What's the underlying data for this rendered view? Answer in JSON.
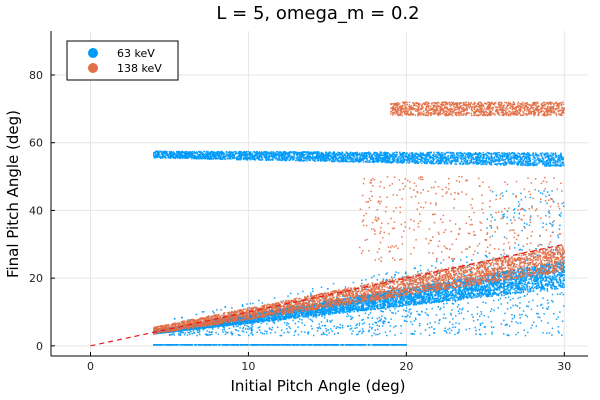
{
  "chart_data": {
    "type": "scatter",
    "title": "L = 5, omega_m = 0.2",
    "xlabel": "Initial Pitch Angle (deg)",
    "ylabel": "Final Pitch Angle (deg)",
    "xlim": [
      -2.5,
      31.5
    ],
    "ylim": [
      -3,
      93
    ],
    "xticks": [
      0,
      10,
      20,
      30
    ],
    "yticks": [
      0,
      20,
      40,
      60,
      80
    ],
    "grid": true,
    "legend_position": "top-left",
    "reference_line": {
      "style": "dashed",
      "color": "#e41a1c",
      "points": [
        [
          0,
          0
        ],
        [
          30,
          30
        ]
      ]
    },
    "series": [
      {
        "name": "63 keV",
        "color": "#009af9",
        "clusters": [
          {
            "kind": "band",
            "x": [
              4,
              30
            ],
            "y_start": [
              55.5,
              57.5
            ],
            "y_end": [
              53,
              57
            ],
            "density": "high",
            "count": 3200
          },
          {
            "kind": "band",
            "x": [
              4,
              30
            ],
            "y_start": [
              3.5,
              4.5
            ],
            "y_end": [
              17,
              25
            ],
            "density": "high",
            "count": 5200
          },
          {
            "kind": "sparse",
            "x": [
              5,
              30
            ],
            "y": [
              3,
              30
            ],
            "count": 1200
          },
          {
            "kind": "flat",
            "x": [
              4,
              20
            ],
            "y": 0.3,
            "count": 600
          },
          {
            "kind": "sparse",
            "x": [
              25,
              30
            ],
            "y": [
              32,
              46
            ],
            "count": 80
          }
        ]
      },
      {
        "name": "138 keV",
        "color": "#e26f46",
        "clusters": [
          {
            "kind": "band",
            "x": [
              4,
              30
            ],
            "y_start": [
              3.5,
              5.5
            ],
            "y_end": [
              22,
              30
            ],
            "density": "high",
            "count": 3600
          },
          {
            "kind": "band",
            "x": [
              19,
              30
            ],
            "y_start": [
              68,
              72
            ],
            "y_end": [
              68,
              72
            ],
            "density": "high",
            "count": 1200
          },
          {
            "kind": "sparse",
            "x": [
              17,
              30
            ],
            "y": [
              25,
              50
            ],
            "count": 380
          }
        ]
      }
    ]
  }
}
